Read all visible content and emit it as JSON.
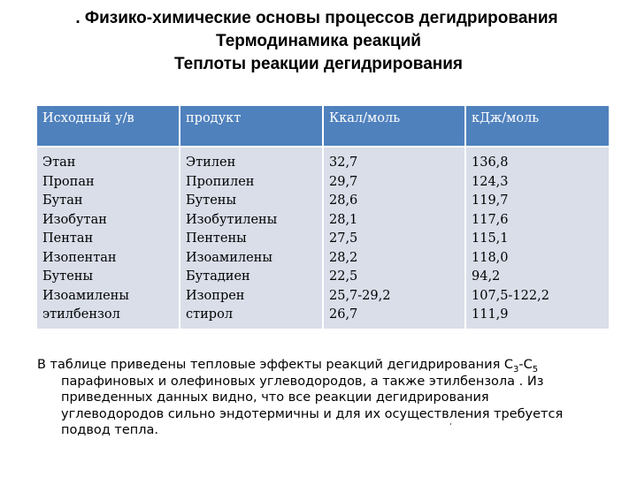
{
  "title": {
    "line1": ". Физико-химические основы процессов дегидрирования",
    "line2": "Термодинамика реакций",
    "line3": "Теплоты  реакции дегидрирования"
  },
  "table": {
    "headers": [
      "Исходный у/в",
      "продукт",
      "Ккал/моль",
      "кДж/моль"
    ],
    "columns": [
      [
        "Этан",
        "Пропан",
        "Бутан",
        "Изобутан",
        "Пентан",
        "Изопентан",
        "Бутены",
        "Изоамилены",
        "этилбензол"
      ],
      [
        "Этилен",
        "Пропилен",
        "Бутены",
        "Изобутилены",
        "Пентены",
        "Изоамилены",
        "Бутадиен",
        "Изопрен",
        "стирол"
      ],
      [
        "32,7",
        "29,7",
        "28,6",
        "28,1",
        "27,5",
        "28,2",
        "22,5",
        "25,7-29,2",
        "26,7"
      ],
      [
        "136,8",
        "124,3",
        "119,7",
        "117,6",
        "115,1",
        "118,0",
        "94,2",
        "107,5-122,2",
        "111,9"
      ]
    ],
    "header_color": "#4f81bd",
    "body_color": "#d9dee9"
  },
  "paragraph": {
    "line1_pre": "В таблице  приведены тепловые эффекты реакций дегидрирования С",
    "line1_sub1": "3",
    "line1_mid": "-С",
    "line1_sub2": "5",
    "line2": "парафиновых и олефиновых углеводородов, а также этилбензола . Из",
    "line3": "приведенных данных видно, что все реакции дегидрирования",
    "line4": "углеводородов сильно эндотермичны и для их осуществления требуется",
    "line5": "подвод тепла."
  },
  "mark": "ʻ"
}
